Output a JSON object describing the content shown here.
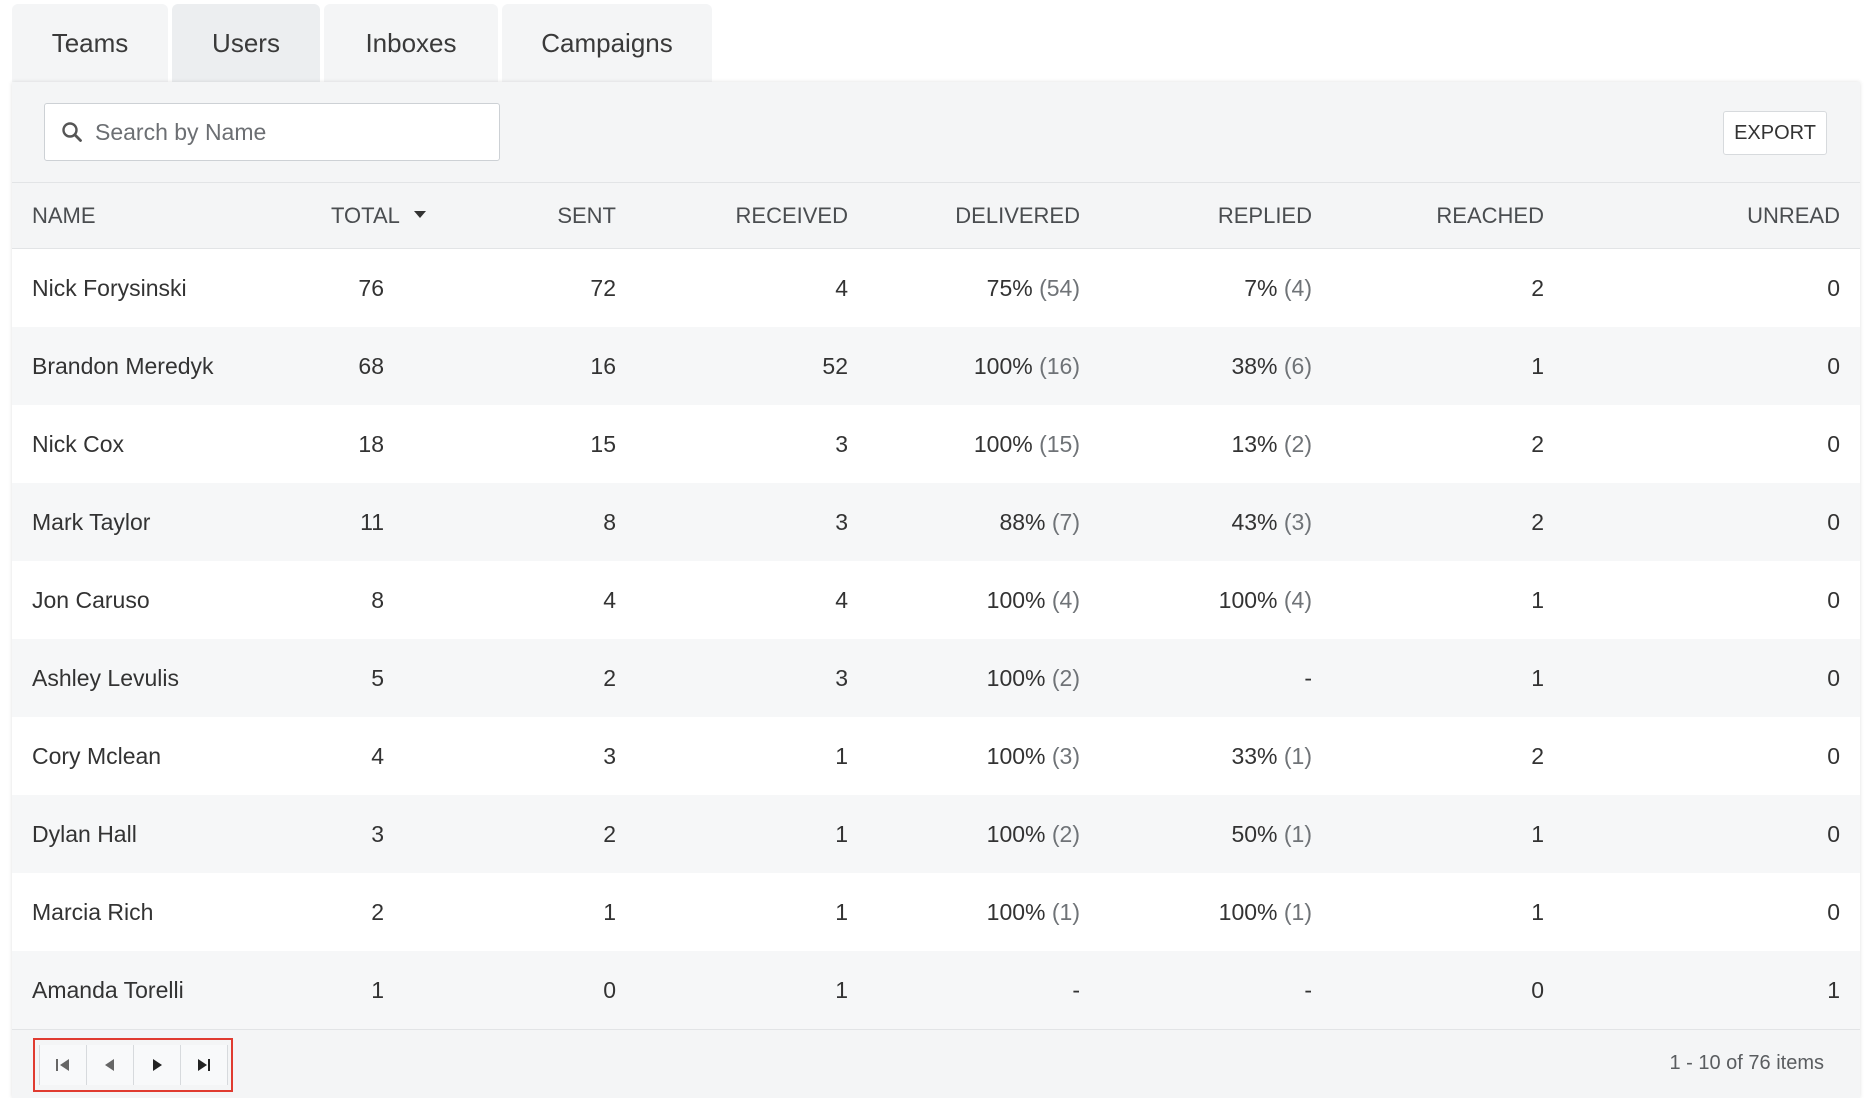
{
  "tabs": [
    {
      "label": "Teams"
    },
    {
      "label": "Users",
      "active": true
    },
    {
      "label": "Inboxes"
    },
    {
      "label": "Campaigns"
    }
  ],
  "search": {
    "placeholder": "Search by Name",
    "icon": "search-icon"
  },
  "export_label": "EXPORT",
  "columns": {
    "name": "NAME",
    "total": "TOTAL",
    "sent": "SENT",
    "received": "RECEIVED",
    "delivered": "DELIVERED",
    "replied": "REPLIED",
    "reached": "REACHED",
    "unread": "UNREAD"
  },
  "rows": [
    {
      "name": "Nick Forysinski",
      "total": "76",
      "sent": "72",
      "received": "4",
      "delivered_pct": "75%",
      "delivered_count": "(54)",
      "replied_pct": "7%",
      "replied_count": "(4)",
      "reached": "2",
      "unread": "0"
    },
    {
      "name": "Brandon Meredyk",
      "total": "68",
      "sent": "16",
      "received": "52",
      "delivered_pct": "100%",
      "delivered_count": "(16)",
      "replied_pct": "38%",
      "replied_count": "(6)",
      "reached": "1",
      "unread": "0"
    },
    {
      "name": "Nick Cox",
      "total": "18",
      "sent": "15",
      "received": "3",
      "delivered_pct": "100%",
      "delivered_count": "(15)",
      "replied_pct": "13%",
      "replied_count": "(2)",
      "reached": "2",
      "unread": "0"
    },
    {
      "name": "Mark Taylor",
      "total": "11",
      "sent": "8",
      "received": "3",
      "delivered_pct": "88%",
      "delivered_count": "(7)",
      "replied_pct": "43%",
      "replied_count": "(3)",
      "reached": "2",
      "unread": "0"
    },
    {
      "name": "Jon Caruso",
      "total": "8",
      "sent": "4",
      "received": "4",
      "delivered_pct": "100%",
      "delivered_count": "(4)",
      "replied_pct": "100%",
      "replied_count": "(4)",
      "reached": "1",
      "unread": "0"
    },
    {
      "name": "Ashley Levulis",
      "total": "5",
      "sent": "2",
      "received": "3",
      "delivered_pct": "100%",
      "delivered_count": "(2)",
      "replied_pct": "-",
      "replied_count": "",
      "reached": "1",
      "unread": "0"
    },
    {
      "name": "Cory Mclean",
      "total": "4",
      "sent": "3",
      "received": "1",
      "delivered_pct": "100%",
      "delivered_count": "(3)",
      "replied_pct": "33%",
      "replied_count": "(1)",
      "reached": "2",
      "unread": "0"
    },
    {
      "name": "Dylan Hall",
      "total": "3",
      "sent": "2",
      "received": "1",
      "delivered_pct": "100%",
      "delivered_count": "(2)",
      "replied_pct": "50%",
      "replied_count": "(1)",
      "reached": "1",
      "unread": "0"
    },
    {
      "name": "Marcia Rich",
      "total": "2",
      "sent": "1",
      "received": "1",
      "delivered_pct": "100%",
      "delivered_count": "(1)",
      "replied_pct": "100%",
      "replied_count": "(1)",
      "reached": "1",
      "unread": "0"
    },
    {
      "name": "Amanda Torelli",
      "total": "1",
      "sent": "0",
      "received": "1",
      "delivered_pct": "-",
      "delivered_count": "",
      "replied_pct": "-",
      "replied_count": "",
      "reached": "0",
      "unread": "1"
    }
  ],
  "pagination": {
    "first_icon": "first-page-icon",
    "prev_icon": "previous-page-icon",
    "next_icon": "next-page-icon",
    "last_icon": "last-page-icon",
    "info": "1 - 10 of 76 items"
  }
}
